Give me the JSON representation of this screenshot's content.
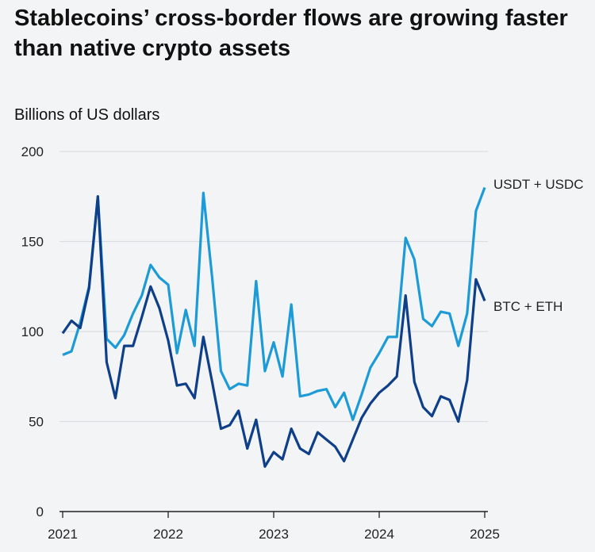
{
  "chart_data": {
    "type": "line",
    "title": "Stablecoins’ cross-border flows are growing faster than native crypto assets",
    "ylabel": "Billions of US dollars",
    "xlabel": "",
    "ylim": [
      0,
      200
    ],
    "yticks": [
      "0",
      "50",
      "100",
      "150",
      "200"
    ],
    "xticks": [
      "2021",
      "2022",
      "2023",
      "2024",
      "2025"
    ],
    "xlim": [
      2021,
      2025
    ],
    "grid": true,
    "legend": "direct labels at line ends (right)",
    "series": [
      {
        "name": "USDT + USDC",
        "color": "#1c9bd7",
        "values": [
          87,
          89,
          105,
          125,
          175,
          96,
          91,
          98,
          110,
          120,
          137,
          130,
          126,
          88,
          112,
          92,
          177,
          130,
          78,
          68,
          71,
          70,
          128,
          78,
          94,
          75,
          115,
          64,
          65,
          67,
          68,
          58,
          66,
          51,
          65,
          80,
          88,
          97,
          97,
          152,
          140,
          107,
          103,
          111,
          110,
          92,
          110,
          167,
          180
        ]
      },
      {
        "name": "BTC + ETH",
        "color": "#0e3f88",
        "values": [
          99,
          106,
          102,
          124,
          175,
          83,
          63,
          92,
          92,
          108,
          125,
          113,
          95,
          70,
          71,
          63,
          97,
          72,
          46,
          48,
          56,
          35,
          51,
          25,
          33,
          29,
          46,
          35,
          32,
          44,
          40,
          36,
          28,
          40,
          52,
          60,
          66,
          70,
          75,
          120,
          72,
          58,
          53,
          64,
          62,
          50,
          73,
          129,
          117
        ]
      }
    ]
  }
}
